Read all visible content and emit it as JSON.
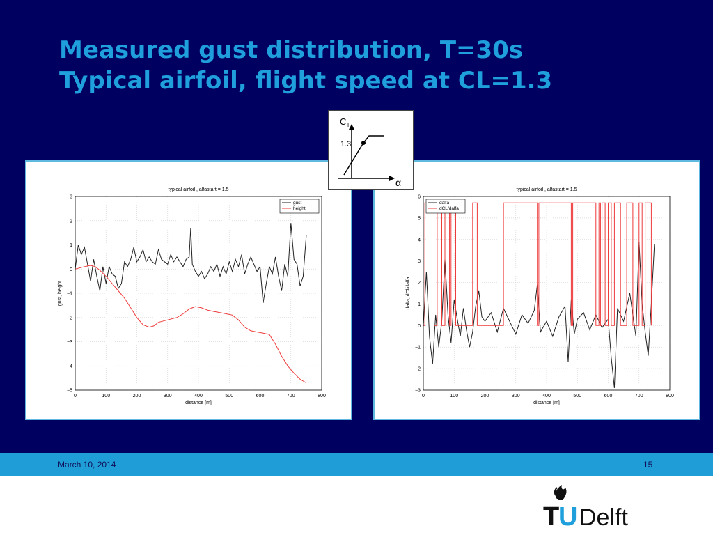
{
  "slide": {
    "title_line1": "Measured gust distribution, T=30s",
    "title_line2": "Typical airfoil,  flight speed at CL=1.3",
    "footer_date": "March 10, 2014",
    "page_number": "15",
    "logo_text_t": "T",
    "logo_text_u": "U",
    "logo_text_delft": "Delft"
  },
  "inset": {
    "y_label": "C",
    "y_subscript": "L",
    "value_label": "1.3",
    "x_label": "α"
  },
  "colors": {
    "background": "#000060",
    "title": "#1fa0dc",
    "footer_bar": "#1f9dd6",
    "series_black": "#222222",
    "series_red": "#ee3b3b"
  },
  "chart_data": [
    {
      "type": "line",
      "title": "typical airfoil , alfastart = 1.5",
      "xlabel": "distance [m]",
      "ylabel": "gust, height",
      "xlim": [
        0,
        800
      ],
      "ylim": [
        -5,
        3
      ],
      "xticks": [
        0,
        100,
        200,
        300,
        400,
        500,
        600,
        700,
        800
      ],
      "yticks": [
        -5,
        -4,
        -3,
        -2,
        -1,
        0,
        1,
        2,
        3
      ],
      "grid": true,
      "legend_position": "top-right",
      "series": [
        {
          "name": "gust",
          "color": "#222222",
          "x": [
            0,
            10,
            20,
            30,
            40,
            50,
            60,
            70,
            80,
            90,
            100,
            110,
            120,
            130,
            140,
            150,
            160,
            170,
            180,
            190,
            200,
            210,
            220,
            230,
            240,
            250,
            260,
            270,
            280,
            290,
            300,
            310,
            320,
            330,
            340,
            350,
            360,
            370,
            375,
            380,
            390,
            400,
            410,
            420,
            430,
            440,
            450,
            460,
            470,
            480,
            490,
            500,
            510,
            520,
            530,
            540,
            550,
            560,
            570,
            580,
            590,
            600,
            610,
            620,
            630,
            640,
            650,
            660,
            670,
            680,
            690,
            700,
            710,
            720,
            730,
            740,
            750
          ],
          "y": [
            0,
            1.0,
            0.6,
            0.9,
            0.2,
            -0.5,
            0.4,
            -0.3,
            -0.9,
            0.1,
            -0.6,
            0.1,
            -0.2,
            -0.3,
            -0.8,
            -0.6,
            0.3,
            0.1,
            0.4,
            0.9,
            0.3,
            0.5,
            0.8,
            0.3,
            0.5,
            0.3,
            0.2,
            0.8,
            0.4,
            0.3,
            0.2,
            0.6,
            0.3,
            0.5,
            0.3,
            0.1,
            0.4,
            0.5,
            1.7,
            0.2,
            -0.1,
            -0.3,
            -0.1,
            -0.4,
            -0.2,
            0.1,
            -0.1,
            0.2,
            -0.3,
            0.1,
            -0.2,
            0.3,
            -0.1,
            0.4,
            0.1,
            0.6,
            -0.2,
            0.2,
            0.5,
            0.2,
            -0.1,
            0.1,
            -1.4,
            -0.6,
            0.1,
            -0.2,
            0.5,
            -0.3,
            -0.9,
            0.2,
            -0.3,
            1.9,
            0.4,
            0.2,
            -0.7,
            -0.3,
            1.4
          ]
        },
        {
          "name": "height",
          "color": "#ee3b3b",
          "x": [
            0,
            30,
            50,
            65,
            80,
            100,
            120,
            140,
            160,
            180,
            200,
            220,
            240,
            255,
            270,
            300,
            330,
            350,
            370,
            390,
            410,
            430,
            450,
            470,
            490,
            510,
            530,
            550,
            570,
            590,
            610,
            630,
            650,
            670,
            690,
            710,
            730,
            750
          ],
          "y": [
            0,
            0.1,
            0.15,
            0.1,
            -0.05,
            -0.3,
            -0.6,
            -0.9,
            -1.2,
            -1.6,
            -2.0,
            -2.3,
            -2.4,
            -2.35,
            -2.2,
            -2.1,
            -2.0,
            -1.85,
            -1.65,
            -1.55,
            -1.6,
            -1.7,
            -1.75,
            -1.8,
            -1.85,
            -1.9,
            -2.1,
            -2.4,
            -2.55,
            -2.6,
            -2.65,
            -2.7,
            -3.1,
            -3.6,
            -4.0,
            -4.3,
            -4.55,
            -4.7
          ]
        }
      ]
    },
    {
      "type": "line",
      "title": "typical airfoil , alfastart = 1.5",
      "xlabel": "distance [m]",
      "ylabel": "dalfa, dCl/dalfa",
      "xlim": [
        0,
        800
      ],
      "ylim": [
        -3,
        6
      ],
      "xticks": [
        0,
        100,
        200,
        300,
        400,
        500,
        600,
        700,
        800
      ],
      "yticks": [
        -3,
        -2,
        -1,
        0,
        1,
        2,
        3,
        4,
        5,
        6
      ],
      "grid": true,
      "legend_position": "top-left",
      "series": [
        {
          "name": "dalfa",
          "color": "#222222",
          "x": [
            0,
            10,
            20,
            30,
            40,
            50,
            60,
            70,
            80,
            90,
            100,
            110,
            120,
            130,
            140,
            150,
            160,
            170,
            180,
            190,
            200,
            220,
            240,
            260,
            280,
            300,
            320,
            340,
            360,
            370,
            380,
            400,
            420,
            440,
            460,
            470,
            480,
            490,
            500,
            520,
            540,
            560,
            580,
            600,
            610,
            620,
            630,
            650,
            670,
            690,
            700,
            710,
            720,
            730,
            740,
            750
          ],
          "y": [
            0,
            2.5,
            -0.5,
            -1.8,
            0.5,
            -1.0,
            0.2,
            3.1,
            0.5,
            -0.8,
            1.2,
            0.3,
            -0.5,
            0.8,
            -0.2,
            -1.0,
            -0.3,
            0.9,
            1.6,
            0.4,
            0.2,
            0.6,
            -0.3,
            0.8,
            0.2,
            -0.4,
            0.5,
            0.1,
            0.7,
            1.9,
            -0.3,
            0.2,
            -0.5,
            0.4,
            0.9,
            -1.7,
            1.2,
            -0.4,
            0.3,
            0.6,
            -0.2,
            0.5,
            -0.1,
            0.3,
            -1.5,
            -2.9,
            0.8,
            0.2,
            1.5,
            -0.5,
            3.9,
            1.0,
            -0.3,
            -1.4,
            1.0,
            3.8
          ]
        },
        {
          "name": "dCL/dalfa",
          "color": "#ee3b3b",
          "x": [
            0,
            5,
            5,
            35,
            35,
            45,
            45,
            60,
            60,
            70,
            70,
            85,
            85,
            90,
            90,
            105,
            105,
            160,
            160,
            175,
            175,
            260,
            260,
            370,
            370,
            375,
            375,
            480,
            480,
            485,
            485,
            560,
            560,
            570,
            570,
            575,
            575,
            580,
            580,
            590,
            590,
            600,
            600,
            610,
            610,
            620,
            620,
            640,
            640,
            660,
            660,
            680,
            680,
            700,
            700,
            710,
            710,
            720,
            720,
            740,
            740
          ],
          "y": [
            0,
            0,
            5.7,
            5.7,
            0,
            0,
            5.7,
            5.7,
            0,
            0,
            5.7,
            5.7,
            0,
            0,
            5.7,
            5.7,
            0,
            0,
            5.7,
            5.7,
            0,
            0,
            5.7,
            5.7,
            0,
            0,
            5.7,
            5.7,
            0,
            0,
            5.7,
            5.7,
            0,
            0,
            5.7,
            5.7,
            0,
            0,
            5.7,
            5.7,
            0,
            0,
            5.7,
            5.7,
            0,
            0,
            5.7,
            5.7,
            0,
            0,
            5.7,
            5.7,
            0,
            0,
            5.7,
            5.7,
            0,
            0,
            5.7,
            5.7,
            0
          ]
        }
      ]
    }
  ]
}
